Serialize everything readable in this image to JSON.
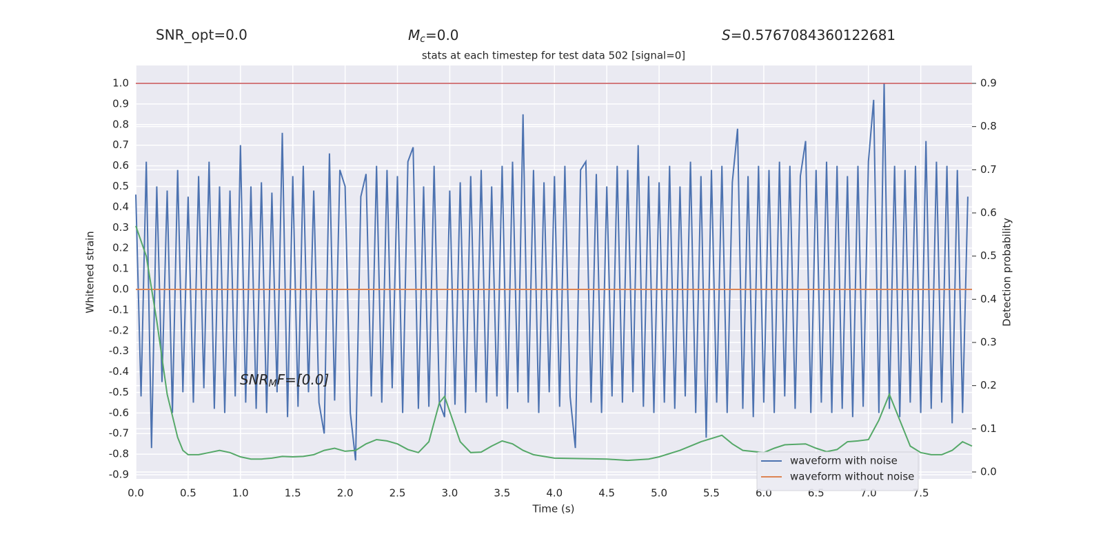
{
  "chart_data": {
    "type": "line",
    "title": "stats at each timestep for test data 502 [signal=0]",
    "stats": [
      {
        "text": "SNR_opt=0.0"
      },
      {
        "base": "M",
        "sub": "c",
        "rest": "=0.0"
      },
      {
        "base": "S",
        "rest": "=0.5767084360122681"
      }
    ],
    "annotation": {
      "base": "SNR",
      "sub": "M",
      "rest": "F=[0.0]"
    },
    "xlabel": "Time (s)",
    "ylabel": "Whitened strain",
    "y2label": "Detection probability",
    "xlim": [
      0,
      7.99
    ],
    "ylim": [
      -0.92,
      1.087
    ],
    "y2lim": [
      -0.016,
      0.9415
    ],
    "xticks": [
      {
        "value": 0,
        "label": "0.0"
      },
      0.5,
      {
        "value": 1,
        "label": "1.0"
      },
      1.5,
      {
        "value": 2,
        "label": "2.0"
      },
      2.5,
      {
        "value": 3,
        "label": "3.0"
      },
      3.5,
      {
        "value": 4,
        "label": "4.0"
      },
      4.5,
      {
        "value": 5,
        "label": "5.0"
      },
      5.5,
      {
        "value": 6,
        "label": "6.0"
      },
      6.5,
      {
        "value": 7,
        "label": "7.0"
      },
      7.5
    ],
    "yticks": [
      -0.9,
      -0.8,
      -0.7,
      -0.6,
      -0.5,
      -0.4,
      -0.3,
      -0.2,
      -0.1,
      {
        "value": 0,
        "label": "0.0"
      },
      0.1,
      0.2,
      0.3,
      0.4,
      0.5,
      0.6,
      0.7,
      0.8,
      0.9,
      {
        "value": 1,
        "label": "1.0"
      }
    ],
    "y2ticks": [
      {
        "value": 0,
        "label": "0.0"
      },
      0.1,
      0.2,
      0.3,
      0.4,
      0.5,
      0.6,
      0.7,
      0.8,
      0.9
    ],
    "grid": true,
    "legend": "lower right",
    "reference_lines": [
      {
        "axis": "y",
        "value": 1.0,
        "color": "#c44e52"
      }
    ],
    "series": [
      {
        "name": "waveform with noise",
        "color": "#4c72b0",
        "x": [
          0,
          0.05,
          0.1,
          0.15,
          0.2,
          0.25,
          0.3,
          0.35,
          0.4,
          0.45,
          0.5,
          0.55,
          0.6,
          0.65,
          0.7,
          0.75,
          0.8,
          0.85,
          0.9,
          0.95,
          1,
          1.05,
          1.1,
          1.15,
          1.2,
          1.25,
          1.3,
          1.35,
          1.4,
          1.45,
          1.5,
          1.55,
          1.6,
          1.65,
          1.7,
          1.75,
          1.8,
          1.85,
          1.9,
          1.95,
          2,
          2.05,
          2.1,
          2.15,
          2.2,
          2.25,
          2.3,
          2.35,
          2.4,
          2.45,
          2.5,
          2.55,
          2.6,
          2.65,
          2.7,
          2.75,
          2.8,
          2.85,
          2.9,
          2.95,
          3,
          3.05,
          3.1,
          3.15,
          3.2,
          3.25,
          3.3,
          3.35,
          3.4,
          3.45,
          3.5,
          3.55,
          3.6,
          3.65,
          3.7,
          3.75,
          3.8,
          3.85,
          3.9,
          3.95,
          4,
          4.05,
          4.1,
          4.15,
          4.2,
          4.25,
          4.3,
          4.35,
          4.4,
          4.45,
          4.5,
          4.55,
          4.6,
          4.65,
          4.7,
          4.75,
          4.8,
          4.85,
          4.9,
          4.95,
          5,
          5.05,
          5.1,
          5.15,
          5.2,
          5.25,
          5.3,
          5.35,
          5.4,
          5.45,
          5.5,
          5.55,
          5.6,
          5.65,
          5.7,
          5.75,
          5.8,
          5.85,
          5.9,
          5.95,
          6,
          6.05,
          6.1,
          6.15,
          6.2,
          6.25,
          6.3,
          6.35,
          6.4,
          6.45,
          6.5,
          6.55,
          6.6,
          6.65,
          6.7,
          6.75,
          6.8,
          6.85,
          6.9,
          6.95,
          7,
          7.05,
          7.1,
          7.15,
          7.2,
          7.25,
          7.3,
          7.35,
          7.4,
          7.45,
          7.5,
          7.55,
          7.6,
          7.65,
          7.7,
          7.75,
          7.8,
          7.85,
          7.9,
          7.95
        ],
        "values": [
          0.46,
          -0.52,
          0.62,
          -0.77,
          0.5,
          -0.45,
          0.48,
          -0.6,
          0.58,
          -0.5,
          0.45,
          -0.55,
          0.55,
          -0.48,
          0.62,
          -0.58,
          0.5,
          -0.6,
          0.48,
          -0.52,
          0.7,
          -0.55,
          0.5,
          -0.58,
          0.52,
          -0.6,
          0.47,
          -0.5,
          0.76,
          -0.62,
          0.55,
          -0.57,
          0.6,
          -0.5,
          0.48,
          -0.55,
          -0.7,
          0.66,
          -0.54,
          0.58,
          0.5,
          -0.6,
          -0.83,
          0.45,
          0.56,
          -0.52,
          0.6,
          -0.55,
          0.58,
          -0.48,
          0.55,
          -0.6,
          0.62,
          0.69,
          -0.58,
          0.5,
          -0.57,
          0.6,
          -0.55,
          -0.62,
          0.48,
          -0.56,
          0.52,
          -0.6,
          0.55,
          -0.5,
          0.58,
          -0.55,
          0.5,
          -0.52,
          0.6,
          -0.58,
          0.62,
          -0.5,
          0.85,
          -0.55,
          0.58,
          -0.6,
          0.52,
          -0.5,
          0.55,
          -0.57,
          0.6,
          -0.52,
          -0.77,
          0.58,
          0.62,
          -0.55,
          0.56,
          -0.6,
          0.5,
          -0.52,
          0.6,
          -0.55,
          0.58,
          -0.5,
          0.7,
          -0.57,
          0.55,
          -0.6,
          0.52,
          -0.55,
          0.6,
          -0.58,
          0.5,
          -0.52,
          0.62,
          -0.6,
          0.55,
          -0.72,
          0.58,
          -0.55,
          0.6,
          -0.6,
          0.52,
          0.78,
          -0.58,
          0.55,
          -0.62,
          0.6,
          -0.55,
          0.58,
          -0.6,
          0.62,
          -0.52,
          0.6,
          -0.58,
          0.55,
          0.72,
          -0.6,
          0.58,
          -0.55,
          0.62,
          -0.6,
          0.6,
          -0.58,
          0.55,
          -0.62,
          0.6,
          -0.57,
          0.62,
          0.92,
          -0.6,
          1.0,
          -0.58,
          0.6,
          -0.62,
          0.58,
          -0.55,
          0.6,
          -0.6,
          0.72,
          -0.58,
          0.62,
          -0.55,
          0.6,
          -0.65,
          0.58,
          -0.6,
          0.45
        ]
      },
      {
        "name": "waveform without noise",
        "color": "#dd8452",
        "x": [
          0,
          7.99
        ],
        "values": [
          0,
          0
        ]
      },
      {
        "color": "#55a868",
        "axis": "y2",
        "x": [
          0,
          0.1,
          0.2,
          0.3,
          0.4,
          0.45,
          0.5,
          0.6,
          0.7,
          0.8,
          0.9,
          1.0,
          1.1,
          1.2,
          1.3,
          1.4,
          1.5,
          1.6,
          1.7,
          1.8,
          1.9,
          2.0,
          2.1,
          2.2,
          2.3,
          2.4,
          2.5,
          2.6,
          2.7,
          2.8,
          2.9,
          2.95,
          3.0,
          3.1,
          3.2,
          3.3,
          3.4,
          3.5,
          3.6,
          3.7,
          3.8,
          4.0,
          4.5,
          4.7,
          4.9,
          5.0,
          5.2,
          5.4,
          5.6,
          5.7,
          5.8,
          6.0,
          6.1,
          6.2,
          6.4,
          6.5,
          6.6,
          6.7,
          6.8,
          6.9,
          7.0,
          7.1,
          7.2,
          7.3,
          7.4,
          7.5,
          7.6,
          7.7,
          7.8,
          7.9,
          7.99
        ],
        "values": [
          0.57,
          0.5,
          0.35,
          0.18,
          0.08,
          0.05,
          0.04,
          0.04,
          0.045,
          0.05,
          0.045,
          0.035,
          0.03,
          0.03,
          0.032,
          0.036,
          0.035,
          0.036,
          0.04,
          0.05,
          0.055,
          0.048,
          0.05,
          0.065,
          0.075,
          0.072,
          0.065,
          0.052,
          0.045,
          0.07,
          0.16,
          0.175,
          0.14,
          0.07,
          0.045,
          0.046,
          0.06,
          0.072,
          0.065,
          0.05,
          0.04,
          0.032,
          0.03,
          0.027,
          0.03,
          0.035,
          0.05,
          0.07,
          0.085,
          0.065,
          0.05,
          0.045,
          0.055,
          0.063,
          0.065,
          0.055,
          0.047,
          0.052,
          0.07,
          0.072,
          0.075,
          0.12,
          0.18,
          0.12,
          0.06,
          0.045,
          0.04,
          0.04,
          0.05,
          0.07,
          0.06
        ]
      }
    ]
  }
}
